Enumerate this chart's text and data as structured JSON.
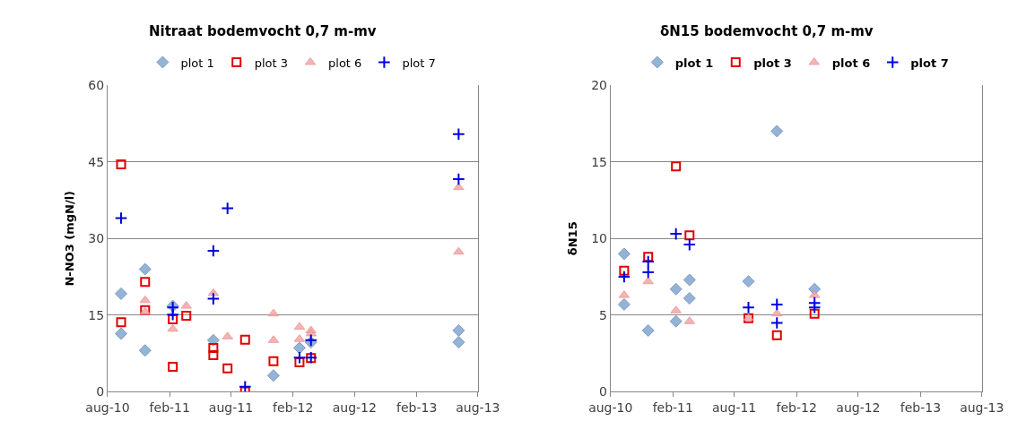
{
  "chart_data": [
    {
      "type": "scatter",
      "title": "Nitraat bodemvocht 0,7 m-mv",
      "ylabel": "N-NO3 (mgN/l)",
      "xlim": [
        "2010-08-01",
        "2013-08-01"
      ],
      "xticks": [
        {
          "value": "2010-08-01",
          "label": "aug-10"
        },
        {
          "value": "2011-02-01",
          "label": "feb-11"
        },
        {
          "value": "2011-08-01",
          "label": "aug-11"
        },
        {
          "value": "2012-02-01",
          "label": "feb-12"
        },
        {
          "value": "2012-08-01",
          "label": "aug-12"
        },
        {
          "value": "2013-02-01",
          "label": "feb-13"
        },
        {
          "value": "2013-08-01",
          "label": "aug-13"
        }
      ],
      "ylim": [
        0,
        60
      ],
      "yticks": [
        0,
        15,
        30,
        45,
        60
      ],
      "grid": "y",
      "legend": "top",
      "series": [
        {
          "name": "plot 1",
          "color": "#95b3d7",
          "marker": "diamond",
          "x": [
            "2010-09-10",
            "2010-09-10",
            "2010-11-20",
            "2010-11-20",
            "2011-02-10",
            "2011-06-10",
            "2011-12-05",
            "2012-02-20",
            "2012-03-25",
            "2013-06-05",
            "2013-06-05"
          ],
          "values": [
            19.2,
            11.4,
            24.0,
            8.1,
            16.8,
            10.1,
            3.2,
            8.6,
            9.7,
            12.0,
            9.7
          ]
        },
        {
          "name": "plot 3",
          "color": "#e00000",
          "marker": "square",
          "x": [
            "2010-09-10",
            "2010-09-10",
            "2010-11-20",
            "2010-11-20",
            "2011-02-10",
            "2011-02-10",
            "2011-03-22",
            "2011-06-10",
            "2011-06-10",
            "2011-07-22",
            "2011-09-12",
            "2011-09-12",
            "2011-12-05",
            "2012-02-20",
            "2012-03-25"
          ],
          "values": [
            44.5,
            13.6,
            21.5,
            16.0,
            14.2,
            4.9,
            14.9,
            8.6,
            7.2,
            4.6,
            10.2,
            0.1,
            6.0,
            5.8,
            6.6
          ]
        },
        {
          "name": "plot 6",
          "color": "#f4a6a6",
          "marker": "triangle",
          "x": [
            "2010-11-20",
            "2010-11-20",
            "2011-02-10",
            "2011-03-22",
            "2011-06-10",
            "2011-07-22",
            "2011-12-05",
            "2011-12-05",
            "2012-02-20",
            "2012-02-20",
            "2012-03-25",
            "2012-03-25",
            "2013-06-05",
            "2013-06-05"
          ],
          "values": [
            17.9,
            15.6,
            12.3,
            16.8,
            19.3,
            10.8,
            15.3,
            10.1,
            12.7,
            10.3,
            12.0,
            11.4,
            40.0,
            27.4
          ]
        },
        {
          "name": "plot 7",
          "color": "#0000e0",
          "marker": "cross",
          "x": [
            "2010-09-10",
            "2011-02-10",
            "2011-02-10",
            "2011-06-10",
            "2011-06-10",
            "2011-07-22",
            "2011-09-12",
            "2012-02-20",
            "2012-03-25",
            "2012-03-25",
            "2013-06-05",
            "2013-06-05"
          ],
          "values": [
            34.0,
            16.5,
            15.1,
            27.6,
            18.2,
            35.9,
            1.0,
            6.7,
            10.1,
            6.7,
            50.4,
            41.6
          ]
        }
      ]
    },
    {
      "type": "scatter",
      "title": "δN15 bodemvocht 0,7 m-mv",
      "ylabel": "δN15",
      "xlim": [
        "2010-08-01",
        "2013-08-01"
      ],
      "xticks": [
        {
          "value": "2010-08-01",
          "label": "aug-10"
        },
        {
          "value": "2011-02-01",
          "label": "feb-11"
        },
        {
          "value": "2011-08-01",
          "label": "aug-11"
        },
        {
          "value": "2012-02-01",
          "label": "feb-12"
        },
        {
          "value": "2012-08-01",
          "label": "aug-12"
        },
        {
          "value": "2013-02-01",
          "label": "feb-13"
        },
        {
          "value": "2013-08-01",
          "label": "aug-13"
        }
      ],
      "ylim": [
        0,
        20
      ],
      "yticks": [
        0,
        5,
        10,
        15,
        20
      ],
      "grid": "y",
      "legend": "top",
      "series": [
        {
          "name": "plot 1",
          "color": "#95b3d7",
          "marker": "diamond",
          "x": [
            "2010-09-10",
            "2010-09-10",
            "2010-11-20",
            "2011-02-10",
            "2011-02-10",
            "2011-03-22",
            "2011-03-22",
            "2011-09-12",
            "2011-12-05",
            "2012-03-25"
          ],
          "values": [
            9.0,
            5.7,
            4.0,
            6.7,
            4.6,
            7.3,
            6.1,
            7.2,
            17.0,
            6.7
          ]
        },
        {
          "name": "plot 3",
          "color": "#e00000",
          "marker": "square",
          "x": [
            "2010-09-10",
            "2010-11-20",
            "2011-02-10",
            "2011-03-22",
            "2011-09-12",
            "2011-12-05",
            "2012-03-25"
          ],
          "values": [
            7.9,
            8.8,
            14.7,
            10.2,
            4.8,
            3.7,
            5.1
          ]
        },
        {
          "name": "plot 6",
          "color": "#f4a6a6",
          "marker": "triangle",
          "x": [
            "2010-09-10",
            "2010-11-20",
            "2011-02-10",
            "2011-03-22",
            "2011-09-12",
            "2011-12-05",
            "2012-03-25"
          ],
          "values": [
            6.3,
            7.2,
            5.3,
            4.6,
            4.8,
            5.1,
            6.3
          ]
        },
        {
          "name": "plot 7",
          "color": "#0000e0",
          "marker": "cross",
          "x": [
            "2010-09-10",
            "2010-11-20",
            "2010-11-20",
            "2011-02-10",
            "2011-03-22",
            "2011-09-12",
            "2011-12-05",
            "2011-12-05",
            "2012-03-25",
            "2012-03-25"
          ],
          "values": [
            7.5,
            8.5,
            7.8,
            10.3,
            9.6,
            5.5,
            5.7,
            4.5,
            5.8,
            5.5
          ]
        }
      ]
    }
  ]
}
